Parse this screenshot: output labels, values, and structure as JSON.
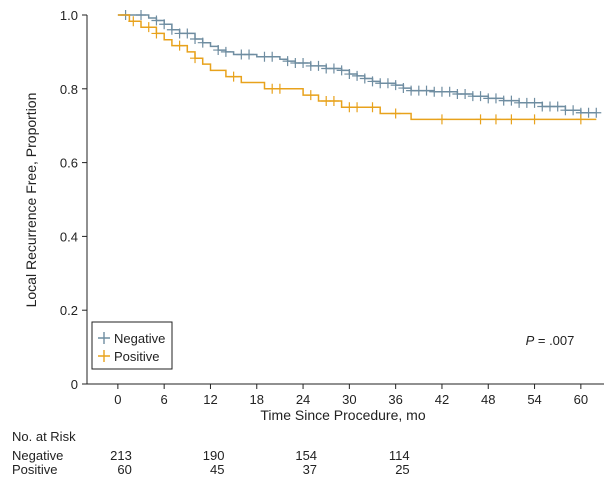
{
  "chart_data": {
    "type": "line",
    "subtype": "kaplan-meier",
    "xlabel": "Time Since Procedure, mo",
    "ylabel": "Local Recurrence Free, Proportion",
    "xlim": [
      -4,
      63
    ],
    "ylim": [
      0,
      1.0
    ],
    "xticks": [
      0,
      6,
      12,
      18,
      24,
      30,
      36,
      42,
      48,
      54,
      60
    ],
    "yticks": [
      0,
      0.2,
      0.4,
      0.6,
      0.8,
      1.0
    ],
    "ytick_labels": [
      "0",
      "0.2",
      "0.4",
      "0.6",
      "0.8",
      "1.0"
    ],
    "grid": false,
    "legend_position": "bottom-left",
    "annotation": {
      "prefix": "P",
      "text": " = .007",
      "x": 56,
      "y": 0.1
    },
    "series": [
      {
        "name": "Negative",
        "color": "#6f8da1",
        "steps": [
          [
            0,
            1.0
          ],
          [
            4,
            0.992
          ],
          [
            5,
            0.985
          ],
          [
            6,
            0.975
          ],
          [
            7,
            0.96
          ],
          [
            8,
            0.95
          ],
          [
            10,
            0.935
          ],
          [
            11,
            0.925
          ],
          [
            12,
            0.915
          ],
          [
            13,
            0.905
          ],
          [
            14,
            0.9
          ],
          [
            15,
            0.893
          ],
          [
            18,
            0.887
          ],
          [
            21,
            0.88
          ],
          [
            22,
            0.875
          ],
          [
            23,
            0.87
          ],
          [
            25,
            0.862
          ],
          [
            27,
            0.855
          ],
          [
            29,
            0.85
          ],
          [
            30,
            0.84
          ],
          [
            31,
            0.835
          ],
          [
            32,
            0.828
          ],
          [
            33,
            0.82
          ],
          [
            34,
            0.815
          ],
          [
            36,
            0.81
          ],
          [
            37,
            0.802
          ],
          [
            38,
            0.795
          ],
          [
            41,
            0.792
          ],
          [
            44,
            0.786
          ],
          [
            46,
            0.78
          ],
          [
            48,
            0.774
          ],
          [
            50,
            0.768
          ],
          [
            52,
            0.762
          ],
          [
            55,
            0.752
          ],
          [
            58,
            0.742
          ],
          [
            60,
            0.735
          ],
          [
            62,
            0.735
          ]
        ],
        "censors": [
          [
            1,
            1.0
          ],
          [
            3,
            1.0
          ],
          [
            5,
            0.985
          ],
          [
            6,
            0.975
          ],
          [
            7,
            0.96
          ],
          [
            8,
            0.95
          ],
          [
            9,
            0.95
          ],
          [
            10,
            0.935
          ],
          [
            11,
            0.925
          ],
          [
            13,
            0.905
          ],
          [
            14,
            0.9
          ],
          [
            16,
            0.893
          ],
          [
            17,
            0.893
          ],
          [
            19,
            0.887
          ],
          [
            20,
            0.887
          ],
          [
            22,
            0.875
          ],
          [
            23,
            0.87
          ],
          [
            24,
            0.87
          ],
          [
            25,
            0.862
          ],
          [
            26,
            0.862
          ],
          [
            27,
            0.855
          ],
          [
            28,
            0.855
          ],
          [
            29,
            0.85
          ],
          [
            30,
            0.84
          ],
          [
            31,
            0.835
          ],
          [
            32,
            0.828
          ],
          [
            33,
            0.82
          ],
          [
            34,
            0.815
          ],
          [
            35,
            0.815
          ],
          [
            36,
            0.81
          ],
          [
            37,
            0.802
          ],
          [
            38,
            0.795
          ],
          [
            39,
            0.795
          ],
          [
            40,
            0.795
          ],
          [
            41,
            0.792
          ],
          [
            42,
            0.792
          ],
          [
            43,
            0.792
          ],
          [
            44,
            0.786
          ],
          [
            45,
            0.786
          ],
          [
            46,
            0.78
          ],
          [
            47,
            0.78
          ],
          [
            48,
            0.774
          ],
          [
            49,
            0.774
          ],
          [
            50,
            0.768
          ],
          [
            51,
            0.768
          ],
          [
            52,
            0.762
          ],
          [
            53,
            0.762
          ],
          [
            54,
            0.762
          ],
          [
            55,
            0.752
          ],
          [
            56,
            0.752
          ],
          [
            57,
            0.752
          ],
          [
            58,
            0.742
          ],
          [
            59,
            0.742
          ],
          [
            60,
            0.735
          ],
          [
            61,
            0.735
          ],
          [
            62,
            0.735
          ]
        ]
      },
      {
        "name": "Positive",
        "color": "#e8a21c",
        "steps": [
          [
            0,
            1.0
          ],
          [
            1.5,
            0.983
          ],
          [
            3,
            0.967
          ],
          [
            5,
            0.95
          ],
          [
            6,
            0.933
          ],
          [
            7,
            0.917
          ],
          [
            9,
            0.9
          ],
          [
            10,
            0.883
          ],
          [
            11,
            0.867
          ],
          [
            12,
            0.85
          ],
          [
            14,
            0.833
          ],
          [
            16,
            0.817
          ],
          [
            19,
            0.8
          ],
          [
            24,
            0.783
          ],
          [
            26,
            0.767
          ],
          [
            29,
            0.75
          ],
          [
            34,
            0.733
          ],
          [
            38,
            0.717
          ],
          [
            62,
            0.717
          ]
        ],
        "censors": [
          [
            2,
            0.983
          ],
          [
            4,
            0.967
          ],
          [
            5,
            0.95
          ],
          [
            8,
            0.917
          ],
          [
            10,
            0.883
          ],
          [
            15,
            0.833
          ],
          [
            20,
            0.8
          ],
          [
            21,
            0.8
          ],
          [
            25,
            0.783
          ],
          [
            27,
            0.767
          ],
          [
            28,
            0.767
          ],
          [
            30,
            0.75
          ],
          [
            31,
            0.75
          ],
          [
            33,
            0.75
          ],
          [
            36,
            0.733
          ],
          [
            42,
            0.717
          ],
          [
            47,
            0.717
          ],
          [
            49,
            0.717
          ],
          [
            51,
            0.717
          ],
          [
            54,
            0.717
          ],
          [
            60,
            0.717
          ]
        ]
      }
    ]
  },
  "risk_table": {
    "title": "No. at Risk",
    "times": [
      0,
      12,
      24,
      36
    ],
    "rows": [
      {
        "label": "Negative",
        "values": [
          "213",
          "190",
          "154",
          "114"
        ]
      },
      {
        "label": "Positive",
        "values": [
          "60",
          "45",
          "37",
          "25"
        ]
      }
    ]
  }
}
